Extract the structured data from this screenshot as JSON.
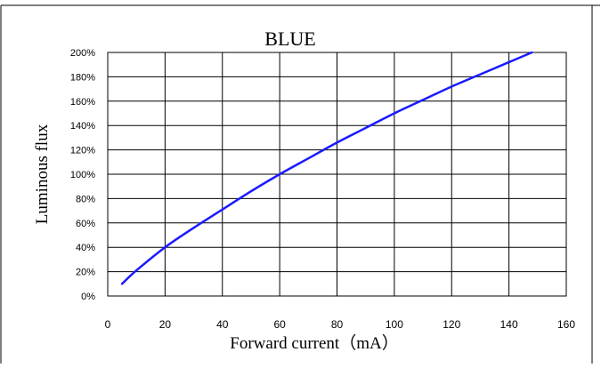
{
  "chart_data": {
    "type": "line",
    "title": "BLUE",
    "xlabel": "Forward current（mA）",
    "ylabel": "Luminous flux",
    "xlim": [
      0,
      160
    ],
    "ylim": [
      0,
      200
    ],
    "x_ticks": [
      0,
      20,
      40,
      60,
      80,
      100,
      120,
      140,
      160
    ],
    "x_tick_labels": [
      "0",
      "20",
      "40",
      "60",
      "80",
      "100",
      "120",
      "140",
      "160"
    ],
    "y_ticks": [
      0,
      20,
      40,
      60,
      80,
      100,
      120,
      140,
      160,
      180,
      200
    ],
    "y_tick_labels": [
      "0%",
      "20%",
      "40%",
      "60%",
      "80%",
      "100%",
      "120%",
      "140%",
      "160%",
      "180%",
      "200%"
    ],
    "grid": true,
    "legend": "none",
    "series": [
      {
        "color": "#1a1aff",
        "x": [
          5,
          10,
          20,
          30,
          40,
          50,
          60,
          70,
          80,
          90,
          100,
          110,
          120,
          130,
          140,
          148
        ],
        "y": [
          10,
          21,
          40,
          56,
          71,
          86,
          100,
          113,
          126,
          138,
          150,
          161,
          172,
          182,
          192,
          200
        ]
      }
    ],
    "colors": {
      "line": "#1a1aff",
      "grid": "#000000",
      "frame": "#000000",
      "text": "#000000"
    }
  }
}
